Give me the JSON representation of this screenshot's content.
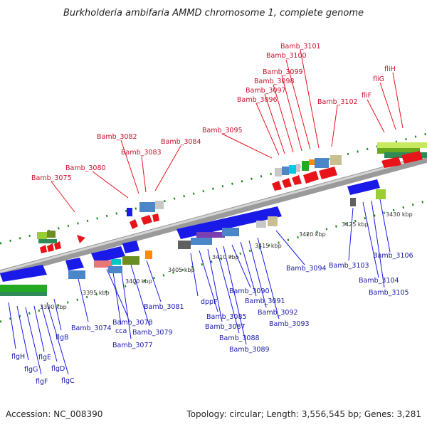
{
  "title": "Burkholderia ambifaria AMMD chromosome 1, complete genome",
  "footer": {
    "accession": "Accession: NC_008390",
    "topology": "Topology: circular; Length: 3,556,545 bp; Genes: 3,281"
  },
  "kbp_labels": [
    "3390 kbp",
    "3395 kbp",
    "3400 kbp",
    "3405 kbp",
    "3410 kbp",
    "3415 kbp",
    "3420 kbp",
    "3425 kbp",
    "3430 kbp"
  ],
  "top_labels": [
    "Bamb_3075",
    "Bamb_3080",
    "Bamb_3082",
    "Bamb_3083",
    "Bamb_3084",
    "Bamb_3095",
    "Bamb_3096",
    "Bamb_3097",
    "Bamb_3098",
    "Bamb_3099",
    "Bamb_3100",
    "Bamb_3101",
    "Bamb_3102",
    "fliF",
    "fliG",
    "fliH"
  ],
  "bottom_labels": [
    "flgH",
    "flgG",
    "flgF",
    "flgE",
    "flgD",
    "flgC",
    "flgB",
    "Bamb_3074",
    "Bamb_3078",
    "cca",
    "Bamb_3077",
    "Bamb_3079",
    "Bamb_3081",
    "dppF",
    "Bamb_3085",
    "Bamb_3087",
    "Bamb_3088",
    "Bamb_3089",
    "Bamb_3090",
    "Bamb_3091",
    "Bamb_3092",
    "Bamb_3093",
    "Bamb_3094",
    "Bamb_3103",
    "Bamb_3104",
    "Bamb_3105",
    "Bamb_3106"
  ],
  "colors": {
    "forward_cds": "#e8141a",
    "reverse_cds": "#1a1ae8",
    "top_label": "#c8102e",
    "bottom_label": "#1a1aa8",
    "backbone": "#9a9a9a",
    "tick": "#1f8a1f"
  }
}
